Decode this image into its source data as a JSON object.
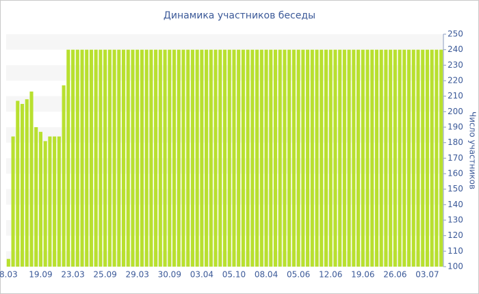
{
  "chart_data": {
    "type": "bar",
    "title": "Динамика участников беседы",
    "y_label": "Число участников",
    "categories": [
      "8.03",
      null,
      null,
      null,
      null,
      null,
      null,
      "19.09",
      null,
      null,
      null,
      null,
      null,
      null,
      "23.03",
      null,
      null,
      null,
      null,
      null,
      null,
      "25.09",
      null,
      null,
      null,
      null,
      null,
      null,
      "29.03",
      null,
      null,
      null,
      null,
      null,
      null,
      "30.09",
      null,
      null,
      null,
      null,
      null,
      null,
      "03.04",
      null,
      null,
      null,
      null,
      null,
      null,
      "05.10",
      null,
      null,
      null,
      null,
      null,
      null,
      "08.04",
      null,
      null,
      null,
      null,
      null,
      null,
      "05.06",
      null,
      null,
      null,
      null,
      null,
      null,
      "12.06",
      null,
      null,
      null,
      null,
      null,
      null,
      "19.06",
      null,
      null,
      null,
      null,
      null,
      null,
      "26.06",
      null,
      null,
      null,
      null,
      null,
      null,
      "03.07",
      null,
      null,
      null
    ],
    "values": [
      105,
      184,
      207,
      205,
      208,
      213,
      190,
      187,
      181,
      184,
      184,
      184,
      217,
      240,
      240,
      240,
      240,
      240,
      240,
      240,
      240,
      240,
      240,
      240,
      240,
      240,
      240,
      240,
      240,
      240,
      240,
      240,
      240,
      240,
      240,
      240,
      240,
      240,
      240,
      240,
      240,
      240,
      240,
      240,
      240,
      240,
      240,
      240,
      240,
      240,
      240,
      240,
      240,
      240,
      240,
      240,
      240,
      240,
      240,
      240,
      240,
      240,
      240,
      240,
      240,
      240,
      240,
      240,
      240,
      240,
      240,
      240,
      240,
      240,
      240,
      240,
      240,
      240,
      240,
      240,
      240,
      240,
      240,
      240,
      240,
      240,
      240,
      240,
      240,
      240,
      240,
      240,
      240,
      240,
      240
    ],
    "color": "#b8e02f",
    "ylim": [
      100,
      250
    ],
    "yticks": [
      100,
      110,
      120,
      130,
      140,
      150,
      160,
      170,
      180,
      190,
      200,
      210,
      220,
      230,
      240,
      250
    ],
    "y_axis_side": "right",
    "grid": true
  }
}
